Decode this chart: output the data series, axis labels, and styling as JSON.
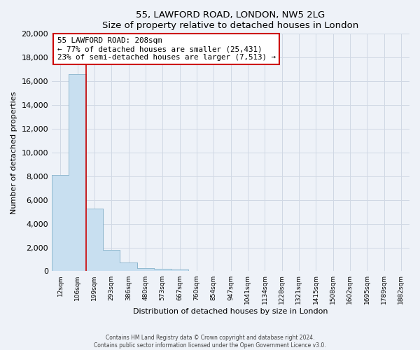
{
  "title": "55, LAWFORD ROAD, LONDON, NW5 2LG",
  "subtitle": "Size of property relative to detached houses in London",
  "xlabel": "Distribution of detached houses by size in London",
  "ylabel": "Number of detached properties",
  "bar_labels": [
    "12sqm",
    "106sqm",
    "199sqm",
    "293sqm",
    "386sqm",
    "480sqm",
    "573sqm",
    "667sqm",
    "760sqm",
    "854sqm",
    "947sqm",
    "1041sqm",
    "1134sqm",
    "1228sqm",
    "1321sqm",
    "1415sqm",
    "1508sqm",
    "1602sqm",
    "1695sqm",
    "1789sqm",
    "1882sqm"
  ],
  "bar_values": [
    8100,
    16600,
    5300,
    1800,
    750,
    290,
    210,
    150,
    0,
    0,
    0,
    0,
    0,
    0,
    0,
    0,
    0,
    0,
    0,
    0,
    0
  ],
  "bar_color": "#c8dff0",
  "bar_edge_color": "#8ab4cc",
  "subject_line_index": 2,
  "subject_label": "55 LAWFORD ROAD: 208sqm",
  "annotation_line1": "← 77% of detached houses are smaller (25,431)",
  "annotation_line2": "23% of semi-detached houses are larger (7,513) →",
  "annotation_box_color": "#ffffff",
  "annotation_box_edgecolor": "#cc0000",
  "ylim": [
    0,
    20000
  ],
  "yticks": [
    0,
    2000,
    4000,
    6000,
    8000,
    10000,
    12000,
    14000,
    16000,
    18000,
    20000
  ],
  "grid_color": "#d0d8e4",
  "footer_line1": "Contains HM Land Registry data © Crown copyright and database right 2024.",
  "footer_line2": "Contains public sector information licensed under the Open Government Licence v3.0.",
  "background_color": "#eef2f8",
  "plot_background_color": "#eef2f8"
}
